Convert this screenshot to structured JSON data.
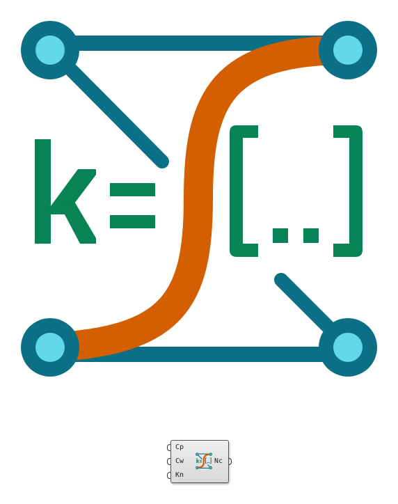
{
  "logo": {
    "equation": "k=",
    "list_symbol": "[..]",
    "colors": {
      "teal": "#0b7086",
      "node_fill": "#62d9ea",
      "orange": "#d35f00",
      "green": "#078356"
    }
  },
  "component": {
    "inputs": [
      "Cp",
      "Cw",
      "Kn"
    ],
    "output": "Nc"
  }
}
